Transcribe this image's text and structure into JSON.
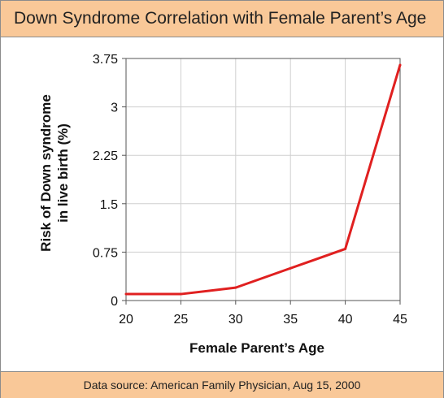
{
  "chart_data": {
    "type": "line",
    "title": "Down Syndrome Correlation with Female Parent’s Age",
    "source": "Data source: American Family Physician, Aug 15, 2000",
    "xlabel": "Female Parent’s Age",
    "ylabel_line1": "Risk of Down syndrome",
    "ylabel_line2": "in live birth (%)",
    "xlim": [
      20,
      45
    ],
    "ylim": [
      0,
      3.75
    ],
    "x_ticks": [
      20,
      25,
      30,
      35,
      40,
      45
    ],
    "y_ticks": [
      0,
      0.75,
      1.5,
      2.25,
      3,
      3.75
    ],
    "y_tick_labels": [
      "0",
      "0.75",
      "1.5",
      "2.25",
      "3",
      "3.75"
    ],
    "grid": true,
    "line_color": "#e02020",
    "series": [
      {
        "x": [
          20,
          25,
          30,
          35,
          40,
          45
        ],
        "y": [
          0.1,
          0.1,
          0.2,
          0.5,
          0.8,
          3.65
        ]
      }
    ]
  }
}
